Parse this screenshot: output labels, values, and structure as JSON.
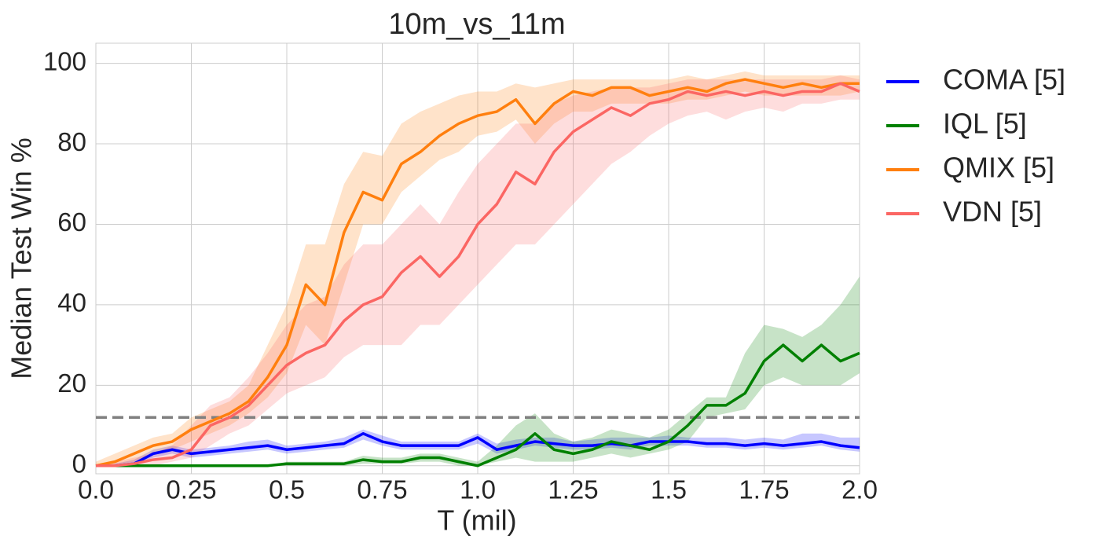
{
  "chart_data": {
    "type": "line",
    "title": "10m_vs_11m",
    "xlabel": "T (mil)",
    "ylabel": "Median Test Win %",
    "x": [
      0,
      0.05,
      0.1,
      0.15,
      0.2,
      0.25,
      0.3,
      0.35,
      0.4,
      0.45,
      0.5,
      0.55,
      0.6,
      0.65,
      0.7,
      0.75,
      0.8,
      0.85,
      0.9,
      0.95,
      1.0,
      1.05,
      1.1,
      1.15,
      1.2,
      1.25,
      1.3,
      1.35,
      1.4,
      1.45,
      1.5,
      1.55,
      1.6,
      1.65,
      1.7,
      1.75,
      1.8,
      1.85,
      1.9,
      1.95,
      2.0
    ],
    "xlim": [
      0,
      2.0
    ],
    "xticks": [
      {
        "value": 0,
        "label": "0.0"
      },
      0.25,
      0.5,
      0.75,
      {
        "value": 1,
        "label": "1.0"
      },
      1.25,
      1.5,
      1.75,
      {
        "value": 2,
        "label": "2.0"
      }
    ],
    "ylim": [
      -2,
      105
    ],
    "yticks": [
      0,
      20,
      40,
      60,
      80,
      100
    ],
    "grid": true,
    "legend": "outside-right",
    "reference_line": 12,
    "series": [
      {
        "name": "COMA [5]",
        "color": "#0000ff",
        "values": [
          0,
          0,
          0.5,
          3,
          4,
          3,
          3.5,
          4,
          4.5,
          5,
          4,
          4.5,
          5,
          5.5,
          8,
          6,
          5,
          5,
          5,
          5,
          7,
          4,
          5,
          6,
          5.5,
          5,
          5,
          5.5,
          5,
          6,
          6,
          6,
          5.5,
          5.5,
          5,
          5.5,
          5,
          5.5,
          6,
          5,
          4.5
        ],
        "lower": [
          0,
          0,
          0,
          2,
          3,
          2,
          2.5,
          3,
          3.5,
          4,
          3,
          3.5,
          4,
          4.5,
          6.5,
          5,
          4,
          4,
          4,
          4,
          5.5,
          3,
          4,
          5,
          4.5,
          4,
          4,
          4.5,
          4,
          5,
          5,
          5,
          4.5,
          4.5,
          4,
          4.5,
          4,
          4.5,
          5,
          4,
          3.5
        ],
        "upper": [
          0,
          0.5,
          1.5,
          4,
          5,
          4,
          4.5,
          5,
          6,
          6.5,
          5,
          5.5,
          6,
          7,
          9,
          7.5,
          6,
          6,
          6,
          6,
          8,
          5.5,
          6.5,
          7,
          7,
          6,
          6.5,
          7,
          7,
          7,
          7.5,
          7,
          7,
          7,
          6.5,
          7,
          6.5,
          8,
          8,
          7,
          7
        ]
      },
      {
        "name": "IQL [5]",
        "color": "#008000",
        "values": [
          0,
          0,
          0,
          0,
          0,
          0,
          0,
          0,
          0,
          0,
          0.5,
          0.5,
          0.5,
          0.5,
          1.5,
          1,
          1,
          2,
          2,
          1,
          0,
          2,
          4,
          8,
          4,
          3,
          4,
          6,
          5,
          4,
          6,
          10,
          15,
          15,
          18,
          26,
          30,
          26,
          30,
          26,
          28
        ],
        "lower": [
          0,
          0,
          0,
          0,
          0,
          0,
          0,
          0,
          0,
          0,
          0,
          0,
          0,
          0,
          0.5,
          0.5,
          0.5,
          1,
          1,
          0,
          0,
          1,
          2,
          1,
          1,
          1,
          2,
          3,
          2,
          3,
          4,
          6,
          12,
          13,
          14,
          20,
          22,
          20,
          20,
          20,
          23
        ],
        "upper": [
          0,
          0,
          0,
          0,
          0,
          0,
          0,
          0,
          0,
          0,
          1,
          1,
          1,
          1,
          2.5,
          2,
          2,
          3,
          3,
          2,
          1,
          5,
          10,
          13,
          8,
          6,
          7,
          9,
          8,
          7,
          9,
          13,
          17,
          17,
          28,
          35,
          34,
          32,
          35,
          40,
          47
        ]
      },
      {
        "name": "QMIX [5]",
        "color": "#ff7f0e",
        "values": [
          0,
          1,
          3,
          5,
          6,
          9,
          11,
          13,
          16,
          22,
          30,
          45,
          40,
          58,
          68,
          66,
          75,
          78,
          82,
          85,
          87,
          88,
          91,
          85,
          90,
          93,
          92,
          94,
          94,
          92,
          93,
          94,
          93,
          95,
          96,
          95,
          94,
          95,
          94,
          95,
          95
        ],
        "lower": [
          0,
          0,
          1,
          3,
          4,
          6,
          8,
          10,
          13,
          17,
          23,
          35,
          30,
          45,
          60,
          60,
          68,
          72,
          76,
          78,
          82,
          83,
          86,
          80,
          85,
          88,
          88,
          90,
          90,
          90,
          90,
          91,
          91,
          92,
          93,
          92,
          92,
          92,
          92,
          92,
          93
        ],
        "upper": [
          1,
          3,
          5,
          7,
          8,
          12,
          14,
          16,
          20,
          30,
          40,
          55,
          55,
          70,
          78,
          77,
          85,
          88,
          90,
          92,
          93,
          93,
          95,
          94,
          95,
          96,
          96,
          96,
          96,
          96,
          96,
          97,
          96,
          97,
          98,
          97,
          97,
          97,
          97,
          97,
          97
        ]
      },
      {
        "name": "VDN [5]",
        "color": "#fb6663",
        "values": [
          0,
          0,
          0.5,
          1.5,
          2,
          4,
          10,
          12,
          15,
          20,
          25,
          28,
          30,
          36,
          40,
          42,
          48,
          52,
          47,
          52,
          60,
          65,
          73,
          70,
          78,
          83,
          86,
          89,
          87,
          90,
          91,
          93,
          92,
          93,
          92,
          93,
          92,
          93,
          93,
          95,
          93
        ],
        "lower": [
          0,
          0,
          0,
          0,
          1,
          2,
          5,
          8,
          10,
          14,
          18,
          20,
          22,
          27,
          30,
          30,
          30,
          35,
          35,
          40,
          45,
          50,
          55,
          55,
          60,
          65,
          70,
          75,
          78,
          82,
          85,
          87,
          88,
          86,
          88,
          89,
          88,
          90,
          90,
          91,
          91
        ],
        "upper": [
          0,
          1,
          2,
          3,
          5,
          10,
          15,
          17,
          22,
          28,
          35,
          40,
          42,
          50,
          55,
          55,
          60,
          65,
          60,
          68,
          75,
          80,
          85,
          85,
          90,
          92,
          93,
          94,
          94,
          94,
          95,
          96,
          96,
          96,
          96,
          96,
          96,
          96,
          96,
          97,
          96
        ]
      }
    ]
  }
}
